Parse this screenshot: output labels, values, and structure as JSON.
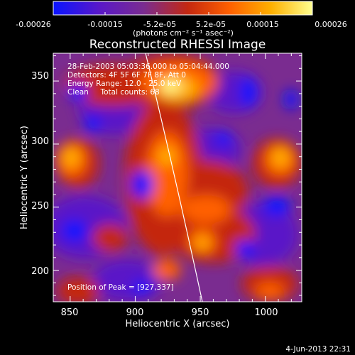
{
  "colorbar": {
    "tick_labels": [
      "-0.00026",
      "-0.00015",
      "-5.2e-05",
      "5.2e-05",
      "0.00015",
      "0.00026"
    ],
    "units": "(photons cm⁻² s⁻¹ asec⁻²)",
    "range": [
      -0.00026,
      0.00026
    ],
    "colors": [
      "#0a14ff",
      "#5a18c8",
      "#7a2c90",
      "#c42810",
      "#ff6000",
      "#ffb000",
      "#ffff90"
    ]
  },
  "image": {
    "title": "Reconstructed RHESSI Image",
    "info_lines": [
      "28-Feb-2003 05:03:36.000 to 05:04:44.000",
      "Detectors: 4F 5F 6F 7F 8F, Att 0",
      "Energy Range: 12.0 - 25.0 keV",
      "Clean     Total counts: 68"
    ],
    "peak_label": "Position of Peak = [927,337]",
    "xlabel": "Heliocentric X (arcsec)",
    "ylabel": "Heliocentric Y (arcsec)",
    "x_ticks": [
      "850",
      "900",
      "950",
      "1000"
    ],
    "y_ticks": [
      "200",
      "250",
      "300",
      "350"
    ],
    "x_tick_values": [
      850,
      900,
      950,
      1000
    ],
    "y_tick_values": [
      200,
      250,
      300,
      350
    ],
    "xlim": [
      837,
      1028
    ],
    "ylim": [
      175,
      372
    ],
    "peak": [
      927,
      337
    ]
  },
  "footer": {
    "date": "4-Jun-2013 22:31"
  }
}
